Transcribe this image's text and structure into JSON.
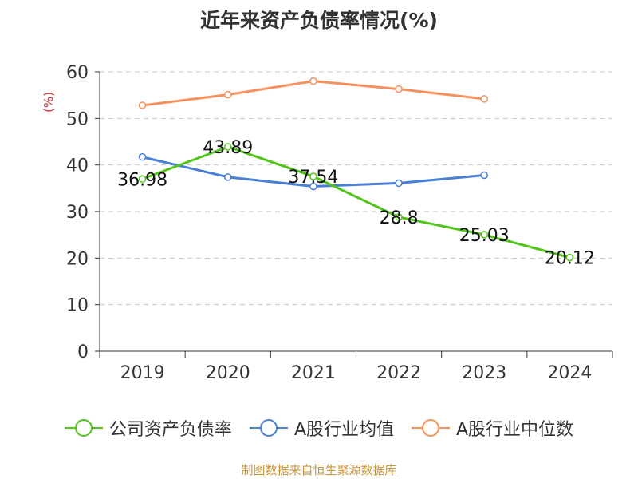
{
  "chart_data": {
    "type": "line",
    "title": "近年来资产负债率情况(%)",
    "ylabel": "(%)",
    "xlabel": "",
    "categories": [
      "2019",
      "2020",
      "2021",
      "2022",
      "2023",
      "2024"
    ],
    "ylim": [
      0,
      60
    ],
    "yticks": [
      0,
      10,
      20,
      30,
      40,
      50,
      60
    ],
    "grid": true,
    "legend_position": "bottom",
    "series": [
      {
        "name": "公司资产负债率",
        "color": "#52c41a",
        "values": [
          36.98,
          43.89,
          37.54,
          28.8,
          25.03,
          20.12
        ],
        "labels": [
          "36.98",
          "43.89",
          "37.54",
          "28.8",
          "25.03",
          "20.12"
        ]
      },
      {
        "name": "A股行业均值",
        "color": "#4a7fd6",
        "values": [
          41.7,
          37.4,
          35.4,
          36.1,
          37.8,
          null
        ]
      },
      {
        "name": "A股行业中位数",
        "color": "#f5915e",
        "values": [
          52.8,
          55.1,
          58.0,
          56.3,
          54.2,
          null
        ]
      }
    ]
  },
  "source": "制图数据来自恒生聚源数据库"
}
